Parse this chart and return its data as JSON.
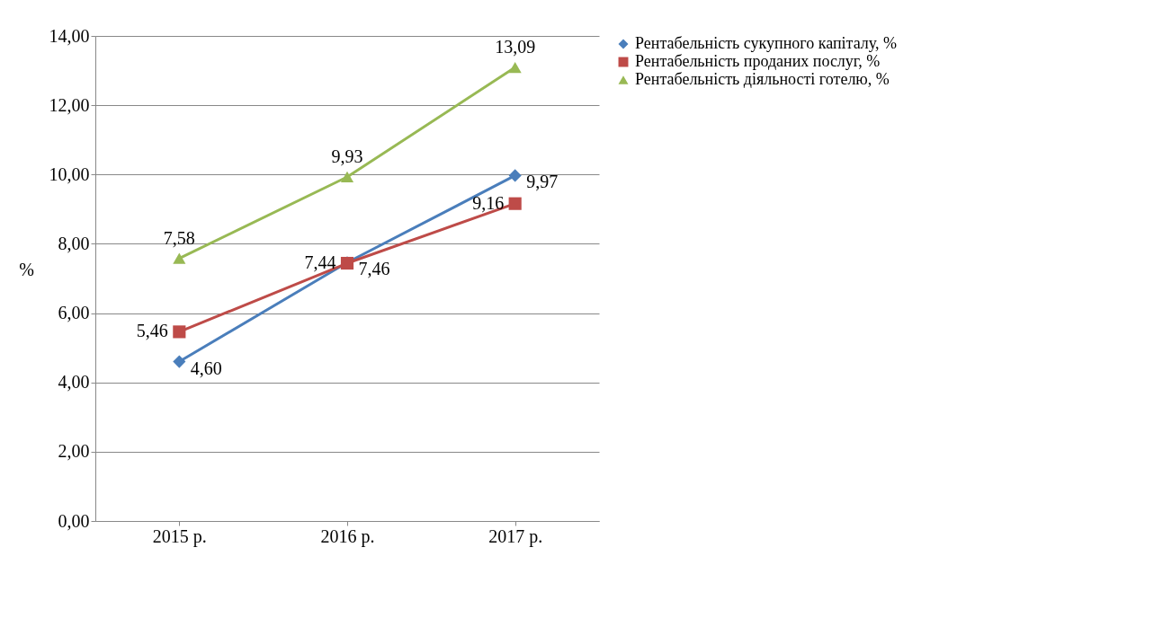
{
  "chart_data": {
    "type": "line",
    "ylabel": "%",
    "categories": [
      "2015 р.",
      "2016 р.",
      "2017 р."
    ],
    "series": [
      {
        "name": "Рентабельність сукупного капіталу, %",
        "color": "#4a7ebb",
        "marker": "diamond",
        "values": [
          4.6,
          7.46,
          9.97
        ],
        "value_labels": [
          "4,60",
          "7,46",
          "9,97"
        ]
      },
      {
        "name": "Рентабельність проданих послуг, %",
        "color": "#be4b48",
        "marker": "square",
        "values": [
          5.46,
          7.44,
          9.16
        ],
        "value_labels": [
          "5,46",
          "7,44",
          "9,16"
        ]
      },
      {
        "name": "Рентабельність діяльності готелю, %",
        "color": "#98b954",
        "marker": "triangle",
        "values": [
          7.58,
          9.93,
          13.09
        ],
        "value_labels": [
          "7,58",
          "9,93",
          "13,09"
        ]
      }
    ],
    "ylim": [
      0,
      14
    ],
    "yticks": [
      {
        "value": 0,
        "label": "0,00"
      },
      {
        "value": 2,
        "label": "2,00"
      },
      {
        "value": 4,
        "label": "4,00"
      },
      {
        "value": 6,
        "label": "6,00"
      },
      {
        "value": 8,
        "label": "8,00"
      },
      {
        "value": 10,
        "label": "10,00"
      },
      {
        "value": 12,
        "label": "12,00"
      },
      {
        "value": 14,
        "label": "14,00"
      }
    ],
    "grid": "y",
    "legend": "right",
    "line_style": "solid"
  }
}
